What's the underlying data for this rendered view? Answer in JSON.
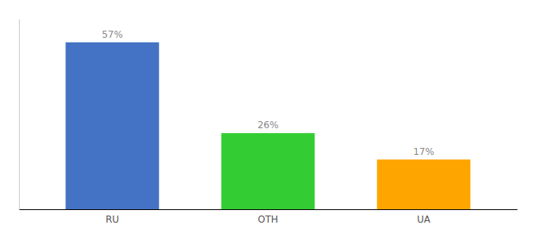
{
  "chart_data": {
    "type": "bar",
    "categories": [
      "RU",
      "OTH",
      "UA"
    ],
    "values": [
      57,
      26,
      17
    ],
    "value_labels": [
      "57%",
      "26%",
      "17%"
    ],
    "colors": [
      "#4472C4",
      "#33CC33",
      "#FFA500"
    ],
    "ylim": [
      0,
      65
    ],
    "data_labels": true,
    "tick_labels": "x"
  }
}
